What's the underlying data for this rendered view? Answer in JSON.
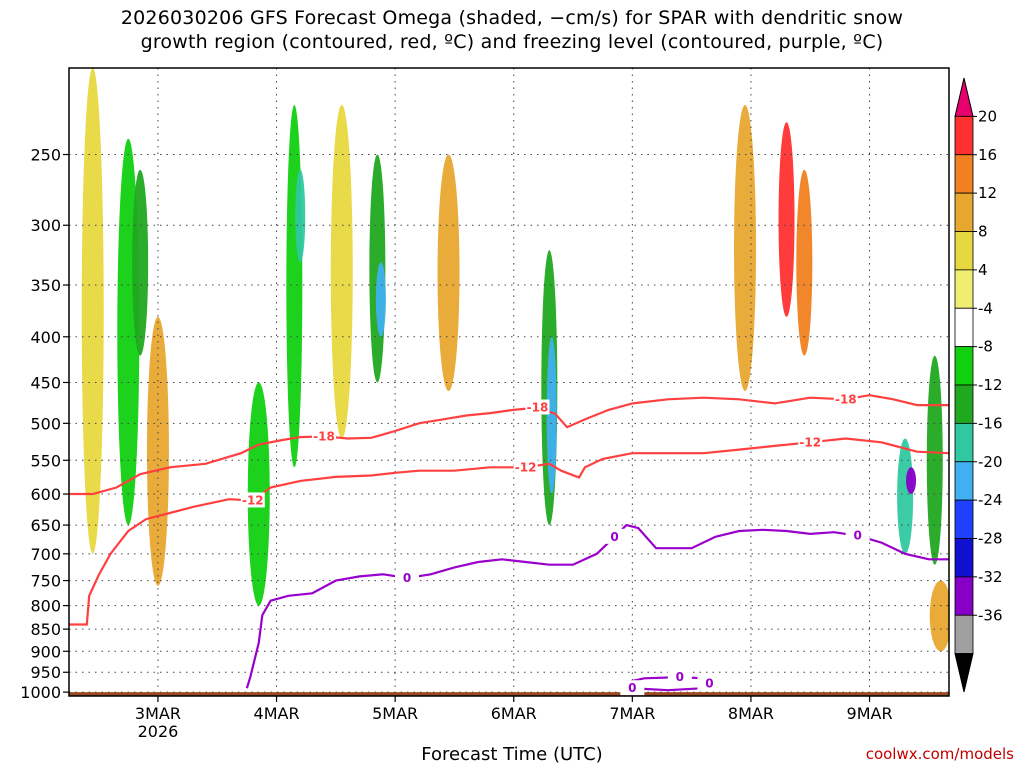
{
  "title": {
    "line1": "2026030206 GFS Forecast Omega (shaded, −cm/s) for SPAR with dendritic snow",
    "line2": "growth region (contoured, red, ºC) and freezing level (contoured, purple, ºC)"
  },
  "watermark": "coolwx.com/models",
  "chart_data": {
    "type": "heatmap",
    "title": "2026030206 GFS Forecast Omega (shaded, −cm/s) for SPAR with dendritic snow growth region (contoured, red, ºC) and freezing level (contoured, purple, ºC)",
    "xlabel": "Forecast Time (UTC)",
    "ylabel": "",
    "xlim_days": [
      -0.75,
      6.67
    ],
    "ylim_hpa": [
      1010,
      200
    ],
    "x_ticks": [
      {
        "day": 0,
        "label": "3MAR",
        "sublabel": "2026"
      },
      {
        "day": 1,
        "label": "4MAR",
        "sublabel": ""
      },
      {
        "day": 2,
        "label": "5MAR",
        "sublabel": ""
      },
      {
        "day": 3,
        "label": "6MAR",
        "sublabel": ""
      },
      {
        "day": 4,
        "label": "7MAR",
        "sublabel": ""
      },
      {
        "day": 5,
        "label": "8MAR",
        "sublabel": ""
      },
      {
        "day": 6,
        "label": "9MAR",
        "sublabel": ""
      }
    ],
    "y_ticks": [
      250,
      300,
      350,
      400,
      450,
      500,
      550,
      600,
      650,
      700,
      750,
      800,
      850,
      900,
      950,
      1000
    ],
    "colorbar": {
      "levels": [
        20,
        16,
        12,
        8,
        4,
        -4,
        -8,
        -12,
        -16,
        -20,
        -24,
        -28,
        -32,
        -36
      ],
      "colors": [
        "#e8006e",
        "#ff3030",
        "#f08020",
        "#e8a830",
        "#e8d840",
        "#f0ee70",
        "#ffffff",
        "#10d010",
        "#20a820",
        "#30c8a0",
        "#40b0f0",
        "#2040ff",
        "#1010d0",
        "#8800c8",
        "#a0a0a0",
        "#000000"
      ]
    },
    "contours": [
      {
        "name": "-18 C",
        "color": "#ff4040",
        "label": "-18",
        "points": [
          [
            -0.75,
            600
          ],
          [
            -0.55,
            600
          ],
          [
            -0.35,
            590
          ],
          [
            -0.15,
            570
          ],
          [
            0.1,
            560
          ],
          [
            0.4,
            555
          ],
          [
            0.7,
            540
          ],
          [
            0.85,
            528
          ],
          [
            1.05,
            522
          ],
          [
            1.2,
            518
          ],
          [
            1.4,
            517
          ],
          [
            1.6,
            520
          ],
          [
            1.8,
            519
          ],
          [
            2.0,
            510
          ],
          [
            2.2,
            500
          ],
          [
            2.4,
            495
          ],
          [
            2.6,
            490
          ],
          [
            2.8,
            487
          ],
          [
            3.0,
            483
          ],
          [
            3.2,
            480
          ],
          [
            3.35,
            488
          ],
          [
            3.45,
            505
          ],
          [
            3.6,
            495
          ],
          [
            3.8,
            483
          ],
          [
            4.0,
            475
          ],
          [
            4.3,
            470
          ],
          [
            4.6,
            468
          ],
          [
            4.9,
            470
          ],
          [
            5.2,
            475
          ],
          [
            5.5,
            468
          ],
          [
            5.8,
            470
          ],
          [
            6.0,
            465
          ],
          [
            6.2,
            470
          ],
          [
            6.4,
            477
          ],
          [
            6.67,
            477
          ]
        ]
      },
      {
        "name": "-12 C",
        "color": "#ff4040",
        "label": "-12",
        "points": [
          [
            -0.75,
            840
          ],
          [
            -0.6,
            840
          ],
          [
            -0.58,
            780
          ],
          [
            -0.5,
            740
          ],
          [
            -0.4,
            700
          ],
          [
            -0.25,
            660
          ],
          [
            -0.1,
            640
          ],
          [
            0.1,
            630
          ],
          [
            0.3,
            620
          ],
          [
            0.6,
            608
          ],
          [
            0.8,
            610
          ],
          [
            0.95,
            590
          ],
          [
            1.2,
            580
          ],
          [
            1.5,
            574
          ],
          [
            1.8,
            572
          ],
          [
            2.0,
            568
          ],
          [
            2.2,
            565
          ],
          [
            2.5,
            565
          ],
          [
            2.8,
            560
          ],
          [
            3.1,
            560
          ],
          [
            3.3,
            555
          ],
          [
            3.4,
            565
          ],
          [
            3.55,
            575
          ],
          [
            3.6,
            560
          ],
          [
            3.75,
            548
          ],
          [
            4.0,
            540
          ],
          [
            4.3,
            540
          ],
          [
            4.6,
            540
          ],
          [
            4.9,
            535
          ],
          [
            5.2,
            530
          ],
          [
            5.5,
            525
          ],
          [
            5.8,
            520
          ],
          [
            6.1,
            525
          ],
          [
            6.4,
            538
          ],
          [
            6.67,
            540
          ]
        ]
      },
      {
        "name": "0 C",
        "color": "#9900cc",
        "label": "0",
        "points": [
          [
            0.75,
            990
          ],
          [
            0.78,
            960
          ],
          [
            0.85,
            880
          ],
          [
            0.88,
            820
          ],
          [
            0.95,
            790
          ],
          [
            1.1,
            780
          ],
          [
            1.3,
            775
          ],
          [
            1.5,
            750
          ],
          [
            1.7,
            742
          ],
          [
            1.9,
            738
          ],
          [
            2.1,
            745
          ],
          [
            2.3,
            738
          ],
          [
            2.5,
            725
          ],
          [
            2.7,
            715
          ],
          [
            2.9,
            710
          ],
          [
            3.1,
            715
          ],
          [
            3.3,
            720
          ],
          [
            3.5,
            720
          ],
          [
            3.7,
            700
          ],
          [
            3.85,
            670
          ],
          [
            3.95,
            650
          ],
          [
            4.05,
            655
          ],
          [
            4.2,
            690
          ],
          [
            4.5,
            690
          ],
          [
            4.7,
            670
          ],
          [
            4.9,
            660
          ],
          [
            5.1,
            658
          ],
          [
            5.3,
            660
          ],
          [
            5.5,
            665
          ],
          [
            5.7,
            662
          ],
          [
            5.9,
            668
          ],
          [
            6.1,
            680
          ],
          [
            6.3,
            700
          ],
          [
            6.5,
            710
          ],
          [
            6.67,
            710
          ]
        ]
      },
      {
        "name": "0 C surface loop",
        "color": "#9900cc",
        "label": "0",
        "points": [
          [
            3.95,
            975
          ],
          [
            4.1,
            965
          ],
          [
            4.4,
            962
          ],
          [
            4.6,
            965
          ],
          [
            4.65,
            978
          ],
          [
            4.6,
            990
          ],
          [
            4.3,
            995
          ],
          [
            4.0,
            990
          ],
          [
            3.95,
            975
          ]
        ]
      }
    ],
    "omega_features": [
      {
        "day": -0.55,
        "p_top": 200,
        "p_bot": 700,
        "value": 6
      },
      {
        "day": -0.25,
        "p_top": 240,
        "p_bot": 650,
        "value": -10
      },
      {
        "day": -0.15,
        "p_top": 260,
        "p_bot": 420,
        "value": -14
      },
      {
        "day": 0.0,
        "p_top": 380,
        "p_bot": 760,
        "value": 8
      },
      {
        "day": 0.6,
        "p_top": 300,
        "p_bot": 700,
        "value": -8
      },
      {
        "day": 0.85,
        "p_top": 450,
        "p_bot": 800,
        "value": -10
      },
      {
        "day": 1.15,
        "p_top": 220,
        "p_bot": 560,
        "value": -12
      },
      {
        "day": 1.2,
        "p_top": 260,
        "p_bot": 330,
        "value": -20
      },
      {
        "day": 1.55,
        "p_top": 220,
        "p_bot": 520,
        "value": 6
      },
      {
        "day": 1.85,
        "p_top": 250,
        "p_bot": 450,
        "value": -14
      },
      {
        "day": 1.88,
        "p_top": 330,
        "p_bot": 400,
        "value": -22
      },
      {
        "day": 2.45,
        "p_top": 250,
        "p_bot": 460,
        "value": 8
      },
      {
        "day": 2.75,
        "p_top": 280,
        "p_bot": 600,
        "value": -8
      },
      {
        "day": 3.3,
        "p_top": 320,
        "p_bot": 650,
        "value": -14
      },
      {
        "day": 3.32,
        "p_top": 400,
        "p_bot": 600,
        "value": -22
      },
      {
        "day": 4.95,
        "p_top": 220,
        "p_bot": 460,
        "value": 10
      },
      {
        "day": 5.3,
        "p_top": 230,
        "p_bot": 380,
        "value": 18
      },
      {
        "day": 5.45,
        "p_top": 260,
        "p_bot": 420,
        "value": 12
      },
      {
        "day": 6.3,
        "p_top": 520,
        "p_bot": 700,
        "value": -18
      },
      {
        "day": 6.35,
        "p_top": 560,
        "p_bot": 600,
        "value": -36
      },
      {
        "day": 6.55,
        "p_top": 420,
        "p_bot": 720,
        "value": -14
      },
      {
        "day": 6.6,
        "p_top": 750,
        "p_bot": 900,
        "value": 8
      }
    ]
  }
}
